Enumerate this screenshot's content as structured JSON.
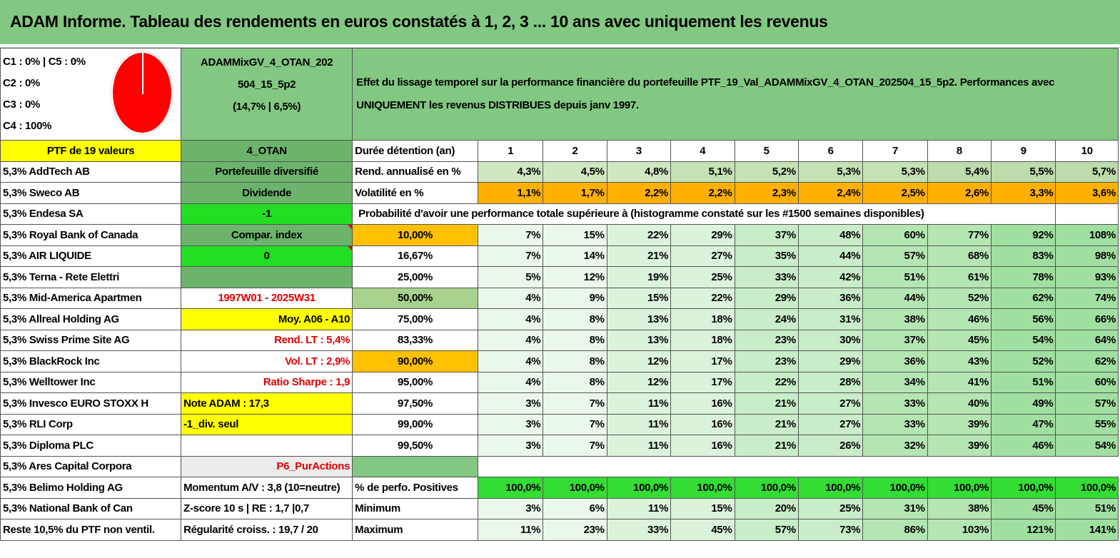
{
  "title": "ADAM Informe. Tableau des rendements en euros constatés à 1, 2, 3 ... 10 ans avec uniquement les revenus",
  "legend": [
    "C1 : 0% | C5 : 0%",
    "C2 : 0%",
    "C3 : 0%",
    "C4 : 100%"
  ],
  "ptf_name": [
    "ADAMMixGV_4_OTAN_202",
    "504_15_5p2",
    "(14,7% | 6,5%)"
  ],
  "effect_text": "Effet du lissage temporel sur la performance financière du portefeuille PTF_19_Val_ADAMMixGV_4_OTAN_202504_15_5p2. Performances avec UNIQUEMENT les revenus DISTRIBUES depuis janv 1997.",
  "ptf_label": "PTF de 19 valeurs",
  "otan_label": "4_OTAN",
  "duree_label": "Durée détention (an)",
  "years": [
    "1",
    "2",
    "3",
    "4",
    "5",
    "6",
    "7",
    "8",
    "9",
    "10"
  ],
  "holdings": [
    "5,3% AddTech AB",
    "5,3% Sweco AB",
    "5,3% Endesa SA",
    "5,3% Royal Bank of Canada",
    "5,3% AIR LIQUIDE",
    "5,3% Terna - Rete Elettri",
    "5,3% Mid-America Apartmen",
    "5,3% Allreal Holding AG",
    "5,3% Swiss Prime Site AG",
    "5,3% BlackRock Inc",
    "5,3% Welltower Inc",
    "5,3% Invesco EURO STOXX H",
    "5,3% RLI Corp",
    "5,3% Diploma PLC",
    "5,3% Ares Capital Corpora",
    "5,3% Belimo Holding AG",
    "5,3% National Bank of Can",
    "Reste 10,5% du PTF non ventil."
  ],
  "info": [
    "Portefeuille diversifié",
    "Dividende",
    "-1",
    "Compar. index",
    "0",
    "",
    "1997W01 - 2025W31",
    "Moy. A06 - A10",
    "Rend. LT : 5,4%",
    "Vol. LT : 2,9%",
    "Ratio Sharpe : 1,9",
    "Note ADAM : 17,3",
    "-1_div. seul",
    "",
    "P6_PurActions",
    "Momentum A/V : 3,8 (10=neutre)",
    "Z-score 10 s | RE : 1,7 |0,7",
    "Régularité croiss. : 19,7 / 20"
  ],
  "rend_label": "Rend. annualisé en %",
  "rend": [
    "4,3%",
    "4,5%",
    "4,8%",
    "5,1%",
    "5,2%",
    "5,3%",
    "5,3%",
    "5,4%",
    "5,5%",
    "5,7%"
  ],
  "vol_label": "Volatilité en %",
  "vol": [
    "1,1%",
    "1,7%",
    "2,2%",
    "2,2%",
    "2,3%",
    "2,4%",
    "2,5%",
    "2,6%",
    "3,3%",
    "3,6%"
  ],
  "prob_label": "Probabilité d'avoir une performance totale supérieure à (histogramme constaté sur les #1500 semaines disponibles)",
  "prob_rows": [
    {
      "p": "10,00%",
      "v": [
        "7%",
        "15%",
        "22%",
        "29%",
        "37%",
        "48%",
        "60%",
        "77%",
        "92%",
        "108%"
      ]
    },
    {
      "p": "16,67%",
      "v": [
        "7%",
        "14%",
        "21%",
        "27%",
        "35%",
        "44%",
        "57%",
        "68%",
        "83%",
        "98%"
      ]
    },
    {
      "p": "25,00%",
      "v": [
        "5%",
        "12%",
        "19%",
        "25%",
        "33%",
        "42%",
        "51%",
        "61%",
        "78%",
        "93%"
      ]
    },
    {
      "p": "50,00%",
      "v": [
        "4%",
        "9%",
        "15%",
        "22%",
        "29%",
        "36%",
        "44%",
        "52%",
        "62%",
        "74%"
      ]
    },
    {
      "p": "75,00%",
      "v": [
        "4%",
        "8%",
        "13%",
        "18%",
        "24%",
        "31%",
        "38%",
        "46%",
        "56%",
        "66%"
      ]
    },
    {
      "p": "83,33%",
      "v": [
        "4%",
        "8%",
        "13%",
        "18%",
        "23%",
        "30%",
        "37%",
        "45%",
        "54%",
        "64%"
      ]
    },
    {
      "p": "90,00%",
      "v": [
        "4%",
        "8%",
        "12%",
        "17%",
        "23%",
        "29%",
        "36%",
        "43%",
        "52%",
        "62%"
      ]
    },
    {
      "p": "95,00%",
      "v": [
        "4%",
        "8%",
        "12%",
        "17%",
        "22%",
        "28%",
        "34%",
        "41%",
        "51%",
        "60%"
      ]
    },
    {
      "p": "97,50%",
      "v": [
        "3%",
        "7%",
        "11%",
        "16%",
        "21%",
        "27%",
        "33%",
        "40%",
        "49%",
        "57%"
      ]
    },
    {
      "p": "99,00%",
      "v": [
        "3%",
        "7%",
        "11%",
        "16%",
        "21%",
        "27%",
        "33%",
        "39%",
        "47%",
        "55%"
      ]
    },
    {
      "p": "99,50%",
      "v": [
        "3%",
        "7%",
        "11%",
        "16%",
        "21%",
        "26%",
        "32%",
        "39%",
        "46%",
        "54%"
      ]
    }
  ],
  "pos_label": "% de perfo. Positives",
  "pos": [
    "100,0%",
    "100,0%",
    "100,0%",
    "100,0%",
    "100,0%",
    "100,0%",
    "100,0%",
    "100,0%",
    "100,0%",
    "100,0%"
  ],
  "min_label": "Minimum",
  "min": [
    "3%",
    "6%",
    "11%",
    "15%",
    "20%",
    "25%",
    "31%",
    "38%",
    "45%",
    "51%"
  ],
  "max_label": "Maximum",
  "max": [
    "11%",
    "23%",
    "33%",
    "45%",
    "57%",
    "73%",
    "86%",
    "103%",
    "121%",
    "141%"
  ]
}
